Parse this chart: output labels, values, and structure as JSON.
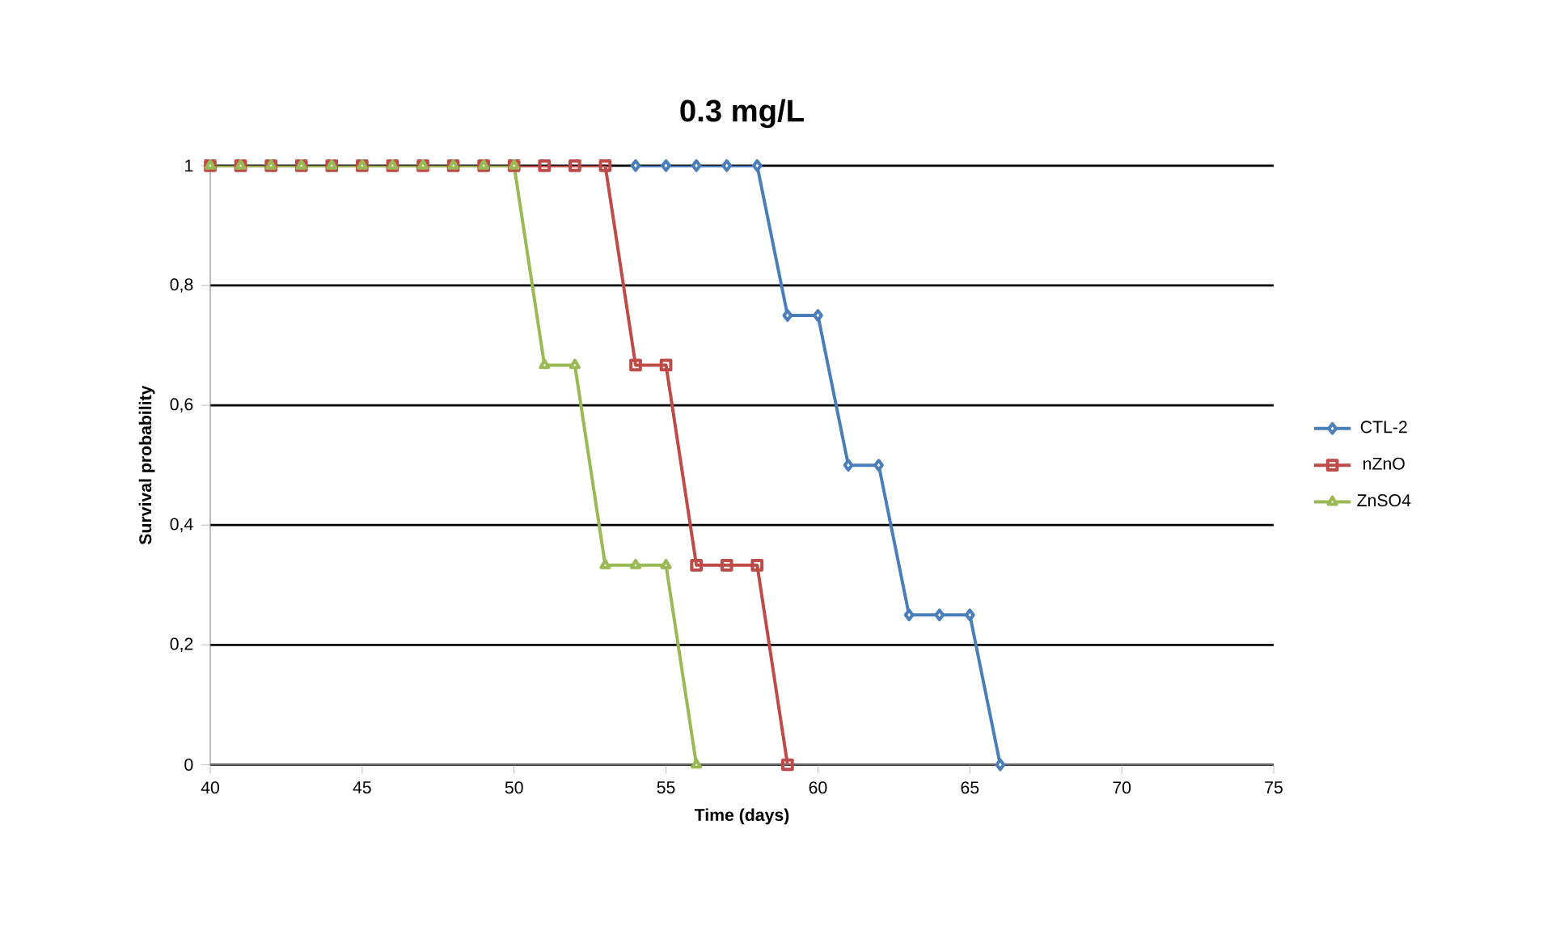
{
  "chart_data": {
    "type": "line",
    "title": "0.3 mg/L",
    "xlabel": "Time (days)",
    "ylabel": "Survival probability",
    "xlim": [
      40,
      75
    ],
    "xticks": [
      40,
      45,
      50,
      55,
      60,
      65,
      70,
      75
    ],
    "ylim": [
      0,
      1
    ],
    "yticks": [
      0,
      {
        "value": 0.2,
        "label": "0,2"
      },
      {
        "value": 0.4,
        "label": "0,4"
      },
      {
        "value": 0.6,
        "label": "0,6"
      },
      {
        "value": 0.8,
        "label": "0,8"
      },
      1
    ],
    "grid": "y",
    "legend": "right",
    "series": [
      {
        "name": "CTL-2",
        "color": "#4a7ebb",
        "marker": "diamond",
        "x": [
          54,
          55,
          56,
          57,
          58,
          59,
          60,
          61,
          62,
          63,
          64,
          65,
          66
        ],
        "values": [
          1,
          1,
          1,
          1,
          1,
          0.75,
          0.75,
          0.5,
          0.5,
          0.25,
          0.25,
          0.25,
          0
        ]
      },
      {
        "name": "nZnO",
        "color": "#be4b48",
        "marker": "square",
        "x": [
          40,
          41,
          42,
          43,
          44,
          45,
          46,
          47,
          48,
          49,
          50,
          51,
          52,
          53,
          54,
          55,
          56,
          57,
          58,
          59
        ],
        "values": [
          1,
          1,
          1,
          1,
          1,
          1,
          1,
          1,
          1,
          1,
          1,
          1,
          1,
          1,
          0.667,
          0.667,
          0.333,
          0.333,
          0.333,
          0
        ]
      },
      {
        "name": "ZnSO4",
        "color": "#98b954",
        "marker": "triangle",
        "x": [
          40,
          41,
          42,
          43,
          44,
          45,
          46,
          47,
          48,
          49,
          50,
          51,
          52,
          53,
          54,
          55,
          56
        ],
        "values": [
          1,
          1,
          1,
          1,
          1,
          1,
          1,
          1,
          1,
          1,
          1,
          0.667,
          0.667,
          0.333,
          0.333,
          0.333,
          0
        ]
      }
    ]
  }
}
